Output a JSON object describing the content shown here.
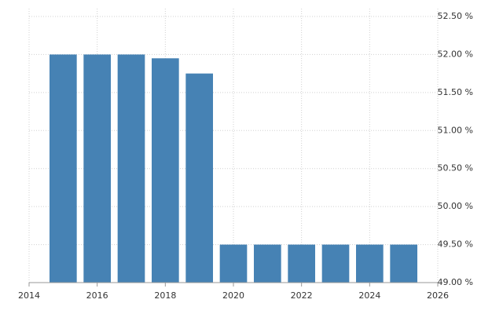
{
  "chart_data": {
    "type": "bar",
    "x": [
      2015,
      2016,
      2017,
      2018,
      2019,
      2020,
      2021,
      2022,
      2023,
      2024,
      2025
    ],
    "values": [
      52,
      52,
      52,
      51.95,
      51.75,
      49.5,
      49.5,
      49.5,
      49.5,
      49.5,
      49.5
    ],
    "color": "#4682b4",
    "xlim": [
      2014,
      2026
    ],
    "xticks": [
      2014,
      2016,
      2018,
      2020,
      2022,
      2024,
      2026
    ],
    "ylim": [
      49,
      52.5
    ],
    "yticks": [
      {
        "value": 49,
        "label": "49.00 %"
      },
      {
        "value": 49.5,
        "label": "49.50 %"
      },
      {
        "value": 50,
        "label": "50.00 %"
      },
      {
        "value": 50.5,
        "label": "50.50 %"
      },
      {
        "value": 51,
        "label": "51.00 %"
      },
      {
        "value": 51.5,
        "label": "51.50 %"
      },
      {
        "value": 52,
        "label": "52.00 %"
      },
      {
        "value": 52.5,
        "label": "52.50 %"
      }
    ],
    "grid": true
  }
}
